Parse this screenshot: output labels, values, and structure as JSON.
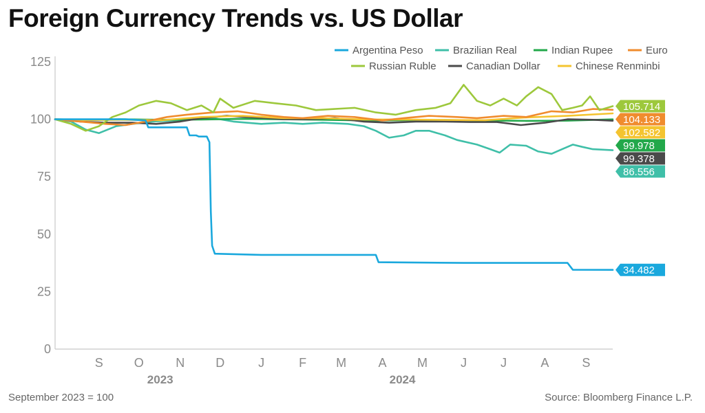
{
  "title": "Foreign Currency Trends vs. US Dollar",
  "footnote": "September 2023 = 100",
  "source": "Source: Bloomberg Finance L.P.",
  "colors": {
    "argentina": "#1aa8dd",
    "brazil": "#3fbfa8",
    "india": "#22a84a",
    "euro": "#f08c2e",
    "russia": "#9dc83c",
    "canada": "#4a4a4a",
    "china": "#f4c430"
  },
  "chart_data": {
    "type": "line",
    "title": "Foreign Currency Trends vs. US Dollar",
    "xlabel": "",
    "ylabel": "",
    "ylim": [
      0,
      125
    ],
    "yticks": [
      "0",
      "25",
      "50",
      "75",
      "100",
      "125"
    ],
    "xlim": [
      "2023-08-13",
      "2024-10-05"
    ],
    "months": [
      {
        "label": "S",
        "date": "2023-09-15"
      },
      {
        "label": "O",
        "date": "2023-10-15"
      },
      {
        "label": "N",
        "date": "2023-11-15"
      },
      {
        "label": "D",
        "date": "2023-12-15"
      },
      {
        "label": "J",
        "date": "2024-01-15"
      },
      {
        "label": "F",
        "date": "2024-02-15"
      },
      {
        "label": "M",
        "date": "2024-03-15"
      },
      {
        "label": "A",
        "date": "2024-04-15"
      },
      {
        "label": "M",
        "date": "2024-05-15"
      },
      {
        "label": "J",
        "date": "2024-06-15"
      },
      {
        "label": "J",
        "date": "2024-07-15"
      },
      {
        "label": "A",
        "date": "2024-08-15"
      },
      {
        "label": "S",
        "date": "2024-09-15"
      }
    ],
    "years": [
      {
        "label": "2023",
        "date": "2023-10-31"
      },
      {
        "label": "2024",
        "date": "2024-04-30"
      }
    ],
    "grid": false,
    "legend_position": "top-right",
    "series": [
      {
        "name": "Argentina Peso",
        "color": "#1aa8dd",
        "end_value": 34.482,
        "end_label": "34.482",
        "points": [
          [
            "2023-08-13",
            100
          ],
          [
            "2023-08-28",
            100
          ],
          [
            "2023-09-15",
            100
          ],
          [
            "2023-10-05",
            100
          ],
          [
            "2023-10-20",
            99.5
          ],
          [
            "2023-10-22",
            96.5
          ],
          [
            "2023-11-10",
            96.5
          ],
          [
            "2023-11-20",
            96.5
          ],
          [
            "2023-11-22",
            93
          ],
          [
            "2023-11-27",
            93
          ],
          [
            "2023-11-29",
            92.5
          ],
          [
            "2023-12-05",
            92.5
          ],
          [
            "2023-12-07",
            90
          ],
          [
            "2023-12-08",
            60
          ],
          [
            "2023-12-09",
            45
          ],
          [
            "2023-12-11",
            41.5
          ],
          [
            "2024-01-15",
            41
          ],
          [
            "2024-03-15",
            41
          ],
          [
            "2024-04-10",
            41
          ],
          [
            "2024-04-12",
            37.8
          ],
          [
            "2024-06-15",
            37.5
          ],
          [
            "2024-09-01",
            37.5
          ],
          [
            "2024-09-05",
            34.5
          ],
          [
            "2024-10-05",
            34.482
          ]
        ]
      },
      {
        "name": "Brazilian Real",
        "color": "#3fbfa8",
        "end_value": 86.556,
        "end_label": "86.556",
        "points": [
          [
            "2023-08-13",
            100
          ],
          [
            "2023-08-25",
            99
          ],
          [
            "2023-09-05",
            95.5
          ],
          [
            "2023-09-15",
            94
          ],
          [
            "2023-09-28",
            97
          ],
          [
            "2023-10-10",
            98
          ],
          [
            "2023-10-25",
            99
          ],
          [
            "2023-11-10",
            99.5
          ],
          [
            "2023-11-25",
            100
          ],
          [
            "2023-12-10",
            100.5
          ],
          [
            "2023-12-25",
            99
          ],
          [
            "2024-01-15",
            98
          ],
          [
            "2024-02-01",
            98.5
          ],
          [
            "2024-02-15",
            98
          ],
          [
            "2024-03-01",
            98.5
          ],
          [
            "2024-03-20",
            98
          ],
          [
            "2024-04-01",
            97
          ],
          [
            "2024-04-10",
            95
          ],
          [
            "2024-04-20",
            92
          ],
          [
            "2024-05-01",
            93
          ],
          [
            "2024-05-10",
            95
          ],
          [
            "2024-05-20",
            95
          ],
          [
            "2024-06-01",
            93
          ],
          [
            "2024-06-10",
            91
          ],
          [
            "2024-06-25",
            89
          ],
          [
            "2024-07-05",
            87
          ],
          [
            "2024-07-12",
            85.5
          ],
          [
            "2024-07-20",
            89
          ],
          [
            "2024-08-01",
            88.5
          ],
          [
            "2024-08-10",
            86
          ],
          [
            "2024-08-20",
            85
          ],
          [
            "2024-08-28",
            87
          ],
          [
            "2024-09-05",
            89
          ],
          [
            "2024-09-12",
            88
          ],
          [
            "2024-09-20",
            87
          ],
          [
            "2024-10-05",
            86.556
          ]
        ]
      },
      {
        "name": "Indian Rupee",
        "color": "#22a84a",
        "end_value": 99.978,
        "end_label": "99.978",
        "points": [
          [
            "2023-08-13",
            100
          ],
          [
            "2023-09-01",
            99.8
          ],
          [
            "2023-10-01",
            100
          ],
          [
            "2023-11-01",
            99.8
          ],
          [
            "2023-12-01",
            99.9
          ],
          [
            "2024-01-01",
            100.2
          ],
          [
            "2024-02-01",
            100
          ],
          [
            "2024-03-01",
            99.8
          ],
          [
            "2024-04-01",
            99.5
          ],
          [
            "2024-05-01",
            99.6
          ],
          [
            "2024-06-01",
            99.7
          ],
          [
            "2024-07-01",
            99.5
          ],
          [
            "2024-08-01",
            99.3
          ],
          [
            "2024-09-01",
            99.4
          ],
          [
            "2024-10-05",
            99.978
          ]
        ]
      },
      {
        "name": "Euro",
        "color": "#f08c2e",
        "end_value": 104.133,
        "end_label": "104.133",
        "points": [
          [
            "2023-08-13",
            100
          ],
          [
            "2023-09-01",
            99
          ],
          [
            "2023-09-20",
            98
          ],
          [
            "2023-10-05",
            97.5
          ],
          [
            "2023-10-20",
            99
          ],
          [
            "2023-11-05",
            101
          ],
          [
            "2023-11-20",
            102
          ],
          [
            "2023-12-10",
            103
          ],
          [
            "2023-12-28",
            103.5
          ],
          [
            "2024-01-15",
            102
          ],
          [
            "2024-02-01",
            101
          ],
          [
            "2024-02-15",
            100.5
          ],
          [
            "2024-03-05",
            101.5
          ],
          [
            "2024-03-25",
            101
          ],
          [
            "2024-04-15",
            99.5
          ],
          [
            "2024-05-01",
            100.5
          ],
          [
            "2024-05-20",
            101.5
          ],
          [
            "2024-06-10",
            101
          ],
          [
            "2024-06-25",
            100.5
          ],
          [
            "2024-07-15",
            101.5
          ],
          [
            "2024-08-01",
            101
          ],
          [
            "2024-08-20",
            103.5
          ],
          [
            "2024-09-05",
            103
          ],
          [
            "2024-09-20",
            104.5
          ],
          [
            "2024-10-05",
            104.133
          ]
        ]
      },
      {
        "name": "Russian Ruble",
        "color": "#9dc83c",
        "end_value": 105.714,
        "end_label": "105.714",
        "points": [
          [
            "2023-08-13",
            100
          ],
          [
            "2023-08-25",
            98
          ],
          [
            "2023-09-05",
            95
          ],
          [
            "2023-09-15",
            97
          ],
          [
            "2023-09-25",
            101
          ],
          [
            "2023-10-05",
            103
          ],
          [
            "2023-10-15",
            106
          ],
          [
            "2023-10-28",
            108
          ],
          [
            "2023-11-08",
            107
          ],
          [
            "2023-11-20",
            104
          ],
          [
            "2023-12-01",
            106
          ],
          [
            "2023-12-10",
            103
          ],
          [
            "2023-12-15",
            109
          ],
          [
            "2023-12-25",
            105
          ],
          [
            "2024-01-10",
            108
          ],
          [
            "2024-01-25",
            107
          ],
          [
            "2024-02-10",
            106
          ],
          [
            "2024-02-25",
            104
          ],
          [
            "2024-03-10",
            104.5
          ],
          [
            "2024-03-25",
            105
          ],
          [
            "2024-04-10",
            103
          ],
          [
            "2024-04-25",
            102
          ],
          [
            "2024-05-10",
            104
          ],
          [
            "2024-05-25",
            105
          ],
          [
            "2024-06-05",
            107
          ],
          [
            "2024-06-15",
            115
          ],
          [
            "2024-06-25",
            108
          ],
          [
            "2024-07-05",
            106
          ],
          [
            "2024-07-15",
            109
          ],
          [
            "2024-07-25",
            106
          ],
          [
            "2024-08-01",
            110
          ],
          [
            "2024-08-10",
            114
          ],
          [
            "2024-08-20",
            111
          ],
          [
            "2024-08-28",
            104
          ],
          [
            "2024-09-05",
            105
          ],
          [
            "2024-09-12",
            106
          ],
          [
            "2024-09-18",
            110
          ],
          [
            "2024-09-25",
            104
          ],
          [
            "2024-10-05",
            105.714
          ]
        ]
      },
      {
        "name": "Canadian Dollar",
        "color": "#4a4a4a",
        "end_value": 99.378,
        "end_label": "99.378",
        "points": [
          [
            "2023-08-13",
            100
          ],
          [
            "2023-09-01",
            99
          ],
          [
            "2023-09-20",
            98.5
          ],
          [
            "2023-10-10",
            98.5
          ],
          [
            "2023-10-28",
            98
          ],
          [
            "2023-11-15",
            99
          ],
          [
            "2023-12-01",
            100.5
          ],
          [
            "2023-12-20",
            101.5
          ],
          [
            "2024-01-10",
            100.8
          ],
          [
            "2024-02-01",
            100
          ],
          [
            "2024-02-20",
            100
          ],
          [
            "2024-03-10",
            100.5
          ],
          [
            "2024-04-01",
            99
          ],
          [
            "2024-04-20",
            98.5
          ],
          [
            "2024-05-10",
            99
          ],
          [
            "2024-06-01",
            99
          ],
          [
            "2024-06-20",
            98.8
          ],
          [
            "2024-07-10",
            98.8
          ],
          [
            "2024-07-28",
            97.5
          ],
          [
            "2024-08-15",
            98.5
          ],
          [
            "2024-09-01",
            100
          ],
          [
            "2024-09-20",
            99.8
          ],
          [
            "2024-10-05",
            99.378
          ]
        ]
      },
      {
        "name": "Chinese Renminbi",
        "color": "#f4c430",
        "end_value": 102.582,
        "end_label": "102.582",
        "points": [
          [
            "2023-08-13",
            100
          ],
          [
            "2023-09-01",
            99.6
          ],
          [
            "2023-10-01",
            99.8
          ],
          [
            "2023-11-01",
            99.6
          ],
          [
            "2023-12-01",
            101
          ],
          [
            "2024-01-01",
            101.5
          ],
          [
            "2024-02-01",
            100.5
          ],
          [
            "2024-03-01",
            100.5
          ],
          [
            "2024-04-01",
            99.9
          ],
          [
            "2024-05-01",
            99.9
          ],
          [
            "2024-06-01",
            99.7
          ],
          [
            "2024-07-01",
            99.6
          ],
          [
            "2024-08-01",
            100.8
          ],
          [
            "2024-09-01",
            101.5
          ],
          [
            "2024-10-05",
            102.582
          ]
        ]
      }
    ]
  }
}
